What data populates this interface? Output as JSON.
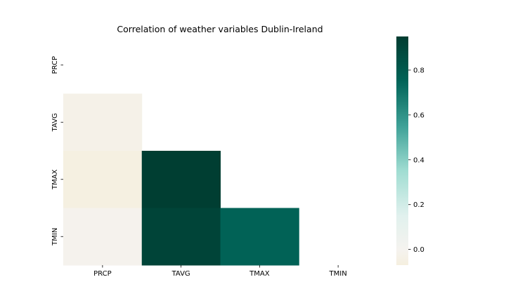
{
  "chart_data": {
    "type": "heatmap",
    "title": "Correlation of weather variables Dublin-Ireland",
    "x_categories": [
      "PRCP",
      "TAVG",
      "TMAX",
      "TMIN"
    ],
    "y_categories": [
      "PRCP",
      "TAVG",
      "TMAX",
      "TMIN"
    ],
    "mask": "upper triangle including diagonal",
    "values": [
      [
        null,
        null,
        null,
        null
      ],
      [
        -0.03,
        null,
        null,
        null
      ],
      [
        -0.06,
        0.94,
        null,
        null
      ],
      [
        -0.01,
        0.91,
        0.76,
        null
      ]
    ],
    "colormap": "BrBG",
    "colorbar": {
      "vmin": -0.07,
      "vmax": 0.95,
      "ticks": [
        0.0,
        0.2,
        0.4,
        0.6,
        0.8
      ],
      "tick_labels": [
        "0.0",
        "0.2",
        "0.4",
        "0.6",
        "0.8"
      ]
    },
    "xlabel": "",
    "ylabel": "",
    "grid": false,
    "legend": "colorbar right"
  }
}
